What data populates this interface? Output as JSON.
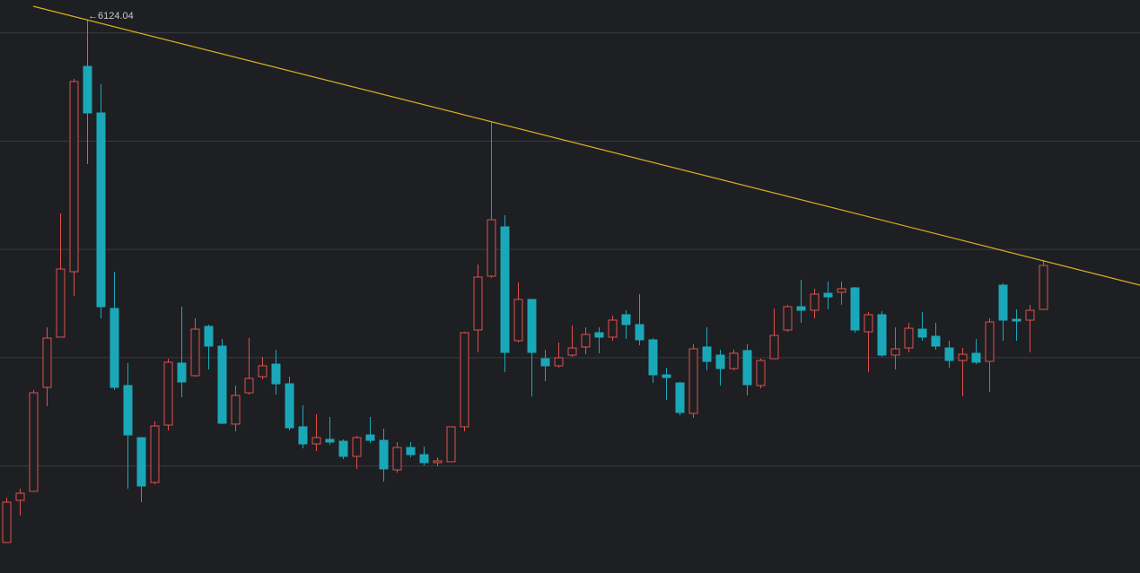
{
  "chart_data": {
    "type": "candlestick",
    "annotation": "←6124.04",
    "up_color": "#e0504a",
    "down_color": "#1aa8b8",
    "ylim": [
      1012,
      6303
    ],
    "yticks": [
      2000,
      3000,
      4000,
      5000,
      6000
    ],
    "grid": true,
    "open": [
      1294,
      1683,
      1766,
      2726,
      3190,
      3794,
      5690,
      5260,
      3455,
      2743,
      2262,
      1848,
      2378,
      2950,
      2834,
      3289,
      3107,
      2387,
      2676,
      2825,
      2941,
      2759,
      2362,
      2204,
      2246,
      2229,
      2089,
      2287,
      2237,
      1964,
      2171,
      2105,
      2031,
      2039,
      2362,
      3256,
      3753,
      4208,
      3157,
      3538,
      2991,
      2925,
      3024,
      3099,
      3231,
      3190,
      3397,
      3306,
      3165,
      2842,
      2767,
      2486,
      3099,
      3024,
      2900,
      3066,
      2743,
      2991,
      3256,
      3471,
      3438,
      3595,
      3604,
      3645,
      3239,
      3397,
      3024,
      3090,
      3264,
      3198,
      3090,
      2974,
      3041,
      2966,
      3670,
      3355,
      3347,
      3446
    ],
    "high": [
      1708,
      1790,
      2701,
      3281,
      4332,
      5574,
      6124.04,
      5525,
      3794,
      2950,
      2262,
      2411,
      2991,
      3471,
      3364,
      3306,
      3173,
      2743,
      3181,
      3008,
      3074,
      2825,
      2560,
      2478,
      2453,
      2246,
      2279,
      2453,
      2345,
      2221,
      2221,
      2180,
      2080,
      2362,
      3239,
      3860,
      5177,
      4316,
      3695,
      3538,
      3074,
      3140,
      3297,
      3281,
      3281,
      3388,
      3438,
      3587,
      3181,
      2908,
      2776,
      3124,
      3281,
      3074,
      3074,
      3124,
      2991,
      3455,
      3488,
      3720,
      3637,
      3703,
      3703,
      3653,
      3422,
      3430,
      3281,
      3322,
      3422,
      3322,
      3157,
      3090,
      3173,
      3364,
      3687,
      3446,
      3488,
      3902
    ],
    "low": [
      1294,
      1542,
      1766,
      2552,
      3190,
      3571,
      4788,
      3364,
      2701,
      1790,
      1666,
      1832,
      2329,
      2635,
      2825,
      2892,
      2387,
      2320,
      2660,
      2801,
      2660,
      2329,
      2163,
      2138,
      2196,
      2064,
      1973,
      2213,
      1857,
      1939,
      2080,
      2006,
      1998,
      2039,
      2320,
      3049,
      3736,
      2867,
      3140,
      2643,
      2784,
      2908,
      3008,
      3032,
      3041,
      3157,
      3173,
      3115,
      2767,
      2610,
      2469,
      2445,
      2883,
      2743,
      2883,
      2652,
      2718,
      2991,
      3239,
      3322,
      3364,
      3446,
      3488,
      3231,
      2867,
      3008,
      2892,
      3049,
      3157,
      3074,
      2908,
      2643,
      2941,
      2685,
      3157,
      3157,
      3049,
      3446
    ],
    "close": [
      1666,
      1749,
      2676,
      3181,
      3819,
      5550,
      5260,
      3471,
      2726,
      2287,
      1815,
      2370,
      2958,
      2776,
      3264,
      3107,
      2395,
      2652,
      2809,
      2925,
      2759,
      2353,
      2204,
      2262,
      2221,
      2089,
      2262,
      2237,
      1973,
      2171,
      2105,
      2031,
      2047,
      2362,
      3231,
      3745,
      4274,
      3049,
      3538,
      3049,
      2925,
      2999,
      3090,
      3215,
      3190,
      3347,
      3306,
      3165,
      2842,
      2817,
      2494,
      3082,
      2966,
      2900,
      3041,
      2751,
      2974,
      3206,
      3471,
      3438,
      3587,
      3562,
      3637,
      3256,
      3397,
      3024,
      3082,
      3272,
      3190,
      3107,
      2974,
      3032,
      2958,
      3330,
      3347,
      3339,
      3438,
      3852
    ]
  }
}
